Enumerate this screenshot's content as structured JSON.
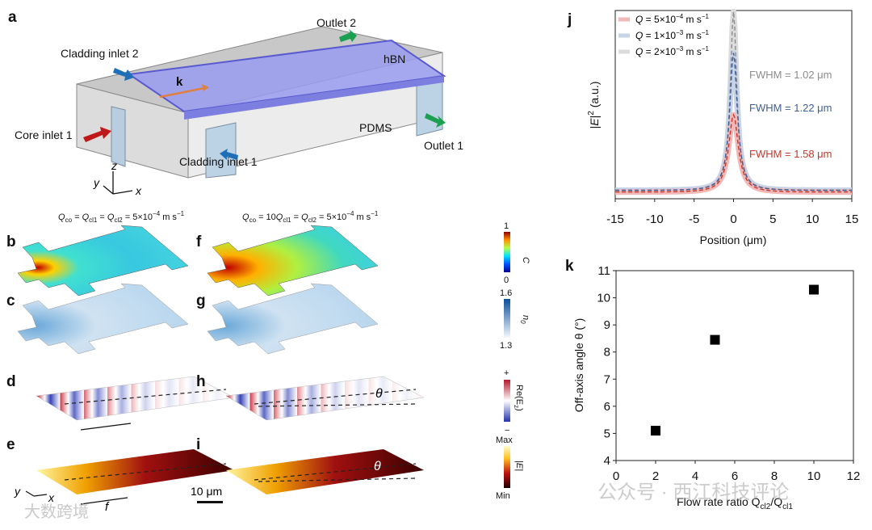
{
  "panels": {
    "a": "a",
    "b": "b",
    "c": "c",
    "d": "d",
    "e": "e",
    "f": "f",
    "g": "g",
    "h": "h",
    "i": "i",
    "j": "j",
    "k": "k"
  },
  "schematic": {
    "outlet2": "Outlet 2",
    "cladding_inlet2": "Cladding inlet 2",
    "hbn": "hBN",
    "k": "k",
    "core_inlet1": "Core inlet 1",
    "pdms": "PDMS",
    "outlet1": "Outlet 1",
    "cladding_inlet1": "Cladding inlet 1",
    "axis_z": "z",
    "axis_y": "y",
    "axis_x": "x"
  },
  "column_titles": {
    "left": {
      "q": "Q",
      "co": "co",
      "eq1": " = ",
      "q2": "Q",
      "cl1": "cl1",
      "eq2": " = ",
      "q3": "Q",
      "cl2": "cl2",
      "rest": " = 5×10",
      "exp": "−4",
      "unit": " m s",
      "uexp": "−1"
    },
    "right": {
      "q": "Q",
      "co": "co",
      "eq1": " = 10",
      "q2": "Q",
      "cl1": "cl1",
      "eq2": " = ",
      "q3": "Q",
      "cl2": "cl2",
      "rest": " = 5×10",
      "exp": "−4",
      "unit": " m s",
      "uexp": "−1"
    }
  },
  "colorbars": {
    "c": {
      "max": "1",
      "min": "0",
      "label": "C"
    },
    "n0": {
      "max": "1.6",
      "min": "1.3",
      "label": "n",
      "sub": "0"
    },
    "ez": {
      "max": "+",
      "min": "−",
      "label": "Re(E",
      "sub": "z",
      "close": ")"
    },
    "e": {
      "max": "Max",
      "min": "Min",
      "label": "|E|"
    }
  },
  "annotations": {
    "theta": "θ",
    "f": "f",
    "x": "x",
    "y": "y",
    "scale": "10 μm"
  },
  "watermarks": {
    "left": "大数跨境",
    "right": "公众号 · 西江科技评论"
  },
  "colors": {
    "red": "#c0392b",
    "blue": "#3f5f99",
    "gray": "#9a9a9a"
  },
  "chart_data": [
    {
      "type": "line",
      "title": "",
      "xlabel": "Position (μm)",
      "ylabel": "|E|² (a.u.)",
      "ylabel_parts": {
        "a": "|",
        "e": "E",
        "b": "|",
        "sup": "2",
        "c": " (a.u.)"
      },
      "xlim": [
        -15,
        15
      ],
      "xticks": [
        "-15",
        "-10",
        "-5",
        "0",
        "5",
        "10",
        "15"
      ],
      "legend_position": "top-left",
      "series": [
        {
          "name": "Q = 5×10⁻⁴ m s⁻¹",
          "legend": {
            "q": "Q",
            "rest": " = 5×10",
            "exp": "−4",
            "unit": " m s",
            "uexp": "−1"
          },
          "peak": 0.45,
          "baseline": 0.04,
          "fwhm": 1.58,
          "fwhm_label": "FWHM = 1.58 μm",
          "color": "#c0392b",
          "band": "#f2b8b8"
        },
        {
          "name": "Q = 1×10⁻³ m s⁻¹",
          "legend": {
            "q": "Q",
            "rest": " = 1×10",
            "exp": "−3",
            "unit": " m s",
            "uexp": "−1"
          },
          "peak": 0.78,
          "baseline": 0.05,
          "fwhm": 1.22,
          "fwhm_label": "FWHM = 1.22 μm",
          "color": "#3f5f99",
          "band": "#c7d3e6"
        },
        {
          "name": "Q = 2×10⁻³ m s⁻¹",
          "legend": {
            "q": "Q",
            "rest": " = 2×10",
            "exp": "−3",
            "unit": " m s",
            "uexp": "−1"
          },
          "peak": 1.0,
          "baseline": 0.05,
          "fwhm": 1.02,
          "fwhm_label": "FWHM = 1.02 μm",
          "color": "#8c8c8c",
          "band": "#dcdcdc"
        }
      ]
    },
    {
      "type": "scatter",
      "title": "",
      "xlabel": "Flow rate ratio Qcl2/Qcl1",
      "xlabel_parts": {
        "a": "Flow rate ratio Q",
        "s1": "cl2",
        "b": "/Q",
        "s2": "cl1"
      },
      "ylabel": "Off-axis angle θ (°)",
      "xlim": [
        0,
        12
      ],
      "ylim": [
        4,
        11
      ],
      "xticks": [
        "0",
        "2",
        "4",
        "6",
        "8",
        "10",
        "12"
      ],
      "yticks": [
        "4",
        "5",
        "6",
        "7",
        "8",
        "9",
        "10",
        "11"
      ],
      "x": [
        2,
        5,
        10
      ],
      "y": [
        5.1,
        8.45,
        10.3
      ]
    }
  ]
}
